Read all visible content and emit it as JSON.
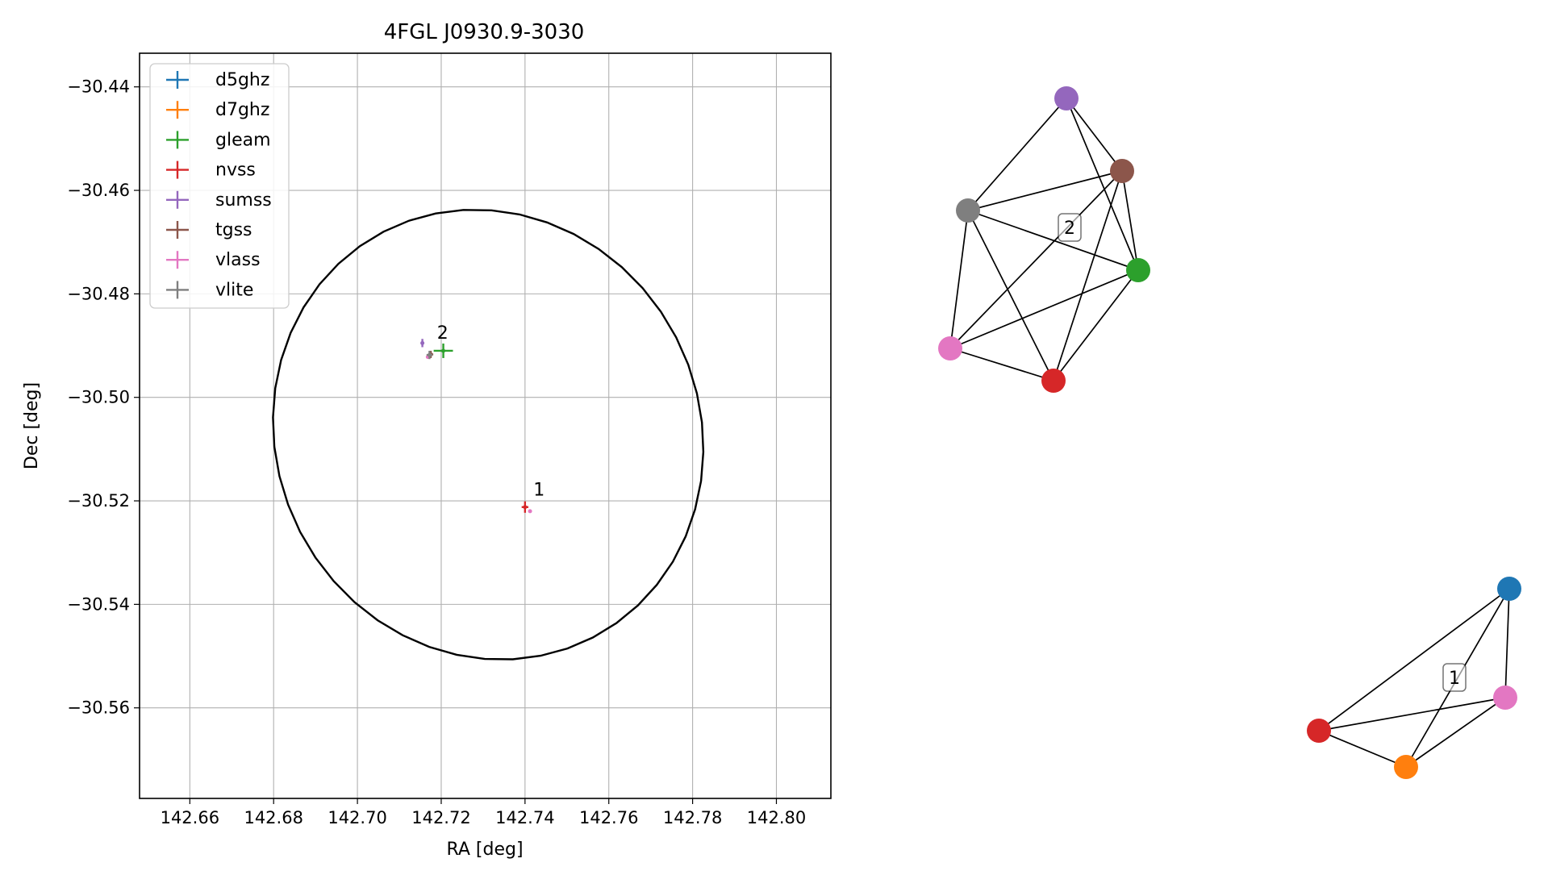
{
  "chart_data": [
    {
      "type": "scatter",
      "title": "4FGL J0930.9-3030",
      "xlabel": "RA [deg]",
      "ylabel": "Dec [deg]",
      "xlim": [
        142.648,
        142.813
      ],
      "ylim": [
        -30.5775,
        -30.4335
      ],
      "xticks": [
        142.66,
        142.68,
        142.7,
        142.72,
        142.74,
        142.76,
        142.78,
        142.8
      ],
      "yticks": [
        -30.44,
        -30.46,
        -30.48,
        -30.5,
        -30.52,
        -30.54,
        -30.56
      ],
      "xtick_labels": [
        "142.66",
        "142.68",
        "142.70",
        "142.72",
        "142.74",
        "142.76",
        "142.78",
        "142.80"
      ],
      "ytick_labels": [
        "−30.44",
        "−30.46",
        "−30.48",
        "−30.50",
        "−30.52",
        "−30.54",
        "−30.56"
      ],
      "grid": true,
      "legend_position": "upper-left",
      "series": [
        {
          "name": "d5ghz",
          "color": "#1f77b4",
          "points": []
        },
        {
          "name": "d7ghz",
          "color": "#ff7f0e",
          "points": []
        },
        {
          "name": "gleam",
          "color": "#2ca02c",
          "points": [
            {
              "x": 142.7205,
              "y": -30.491,
              "xerr": 0.0023,
              "yerr": 0.0014
            }
          ]
        },
        {
          "name": "nvss",
          "color": "#d62728",
          "points": [
            {
              "x": 142.74,
              "y": -30.5212,
              "xerr": 0.0008,
              "yerr": 0.0011
            }
          ]
        },
        {
          "name": "sumss",
          "color": "#9467bd",
          "points": [
            {
              "x": 142.7155,
              "y": -30.4895,
              "xerr": 0.0004,
              "yerr": 0.0008
            }
          ]
        },
        {
          "name": "tgss",
          "color": "#8c564b",
          "points": [
            {
              "x": 142.7175,
              "y": -30.4917,
              "xerr": 0.0006,
              "yerr": 0.0007
            }
          ]
        },
        {
          "name": "vlass",
          "color": "#e377c2",
          "points": [
            {
              "x": 142.7168,
              "y": -30.4922,
              "xerr": 0.0003,
              "yerr": 0.0003
            },
            {
              "x": 142.7412,
              "y": -30.522,
              "xerr": 0.0003,
              "yerr": 0.0003
            }
          ]
        },
        {
          "name": "vlite",
          "color": "#7f7f7f",
          "points": [
            {
              "x": 142.7172,
              "y": -30.4918,
              "xerr": 0.0007,
              "yerr": 0.0008
            }
          ]
        }
      ],
      "annotations": [
        {
          "text": "2",
          "x": 142.719,
          "y": -30.4887
        },
        {
          "text": "1",
          "x": 142.742,
          "y": -30.519
        }
      ],
      "ellipse": {
        "center_x": 142.7312,
        "center_y": -30.5072,
        "a": 0.0516,
        "b": 0.0432,
        "tilt_deg": -10,
        "color": "#000000"
      }
    },
    {
      "type": "network",
      "groups": [
        {
          "label": "2",
          "nodes": [
            {
              "id": "sumss",
              "color": "#9467bd"
            },
            {
              "id": "tgss",
              "color": "#8c564b"
            },
            {
              "id": "vlite",
              "color": "#7f7f7f"
            },
            {
              "id": "gleam",
              "color": "#2ca02c"
            },
            {
              "id": "vlass",
              "color": "#e377c2"
            },
            {
              "id": "nvss",
              "color": "#d62728"
            }
          ],
          "edges": [
            [
              "sumss",
              "vlite"
            ],
            [
              "sumss",
              "tgss"
            ],
            [
              "sumss",
              "gleam"
            ],
            [
              "vlite",
              "tgss"
            ],
            [
              "vlite",
              "gleam"
            ],
            [
              "vlite",
              "vlass"
            ],
            [
              "vlite",
              "nvss"
            ],
            [
              "tgss",
              "gleam"
            ],
            [
              "tgss",
              "vlass"
            ],
            [
              "tgss",
              "nvss"
            ],
            [
              "gleam",
              "vlass"
            ],
            [
              "gleam",
              "nvss"
            ],
            [
              "vlass",
              "nvss"
            ]
          ]
        },
        {
          "label": "1",
          "nodes": [
            {
              "id": "d5ghz",
              "color": "#1f77b4"
            },
            {
              "id": "vlass",
              "color": "#e377c2"
            },
            {
              "id": "nvss",
              "color": "#d62728"
            },
            {
              "id": "d7ghz",
              "color": "#ff7f0e"
            }
          ],
          "edges": [
            [
              "d5ghz",
              "vlass"
            ],
            [
              "d5ghz",
              "nvss"
            ],
            [
              "d5ghz",
              "d7ghz"
            ],
            [
              "nvss",
              "vlass"
            ],
            [
              "nvss",
              "d7ghz"
            ],
            [
              "d7ghz",
              "vlass"
            ]
          ]
        }
      ]
    }
  ]
}
